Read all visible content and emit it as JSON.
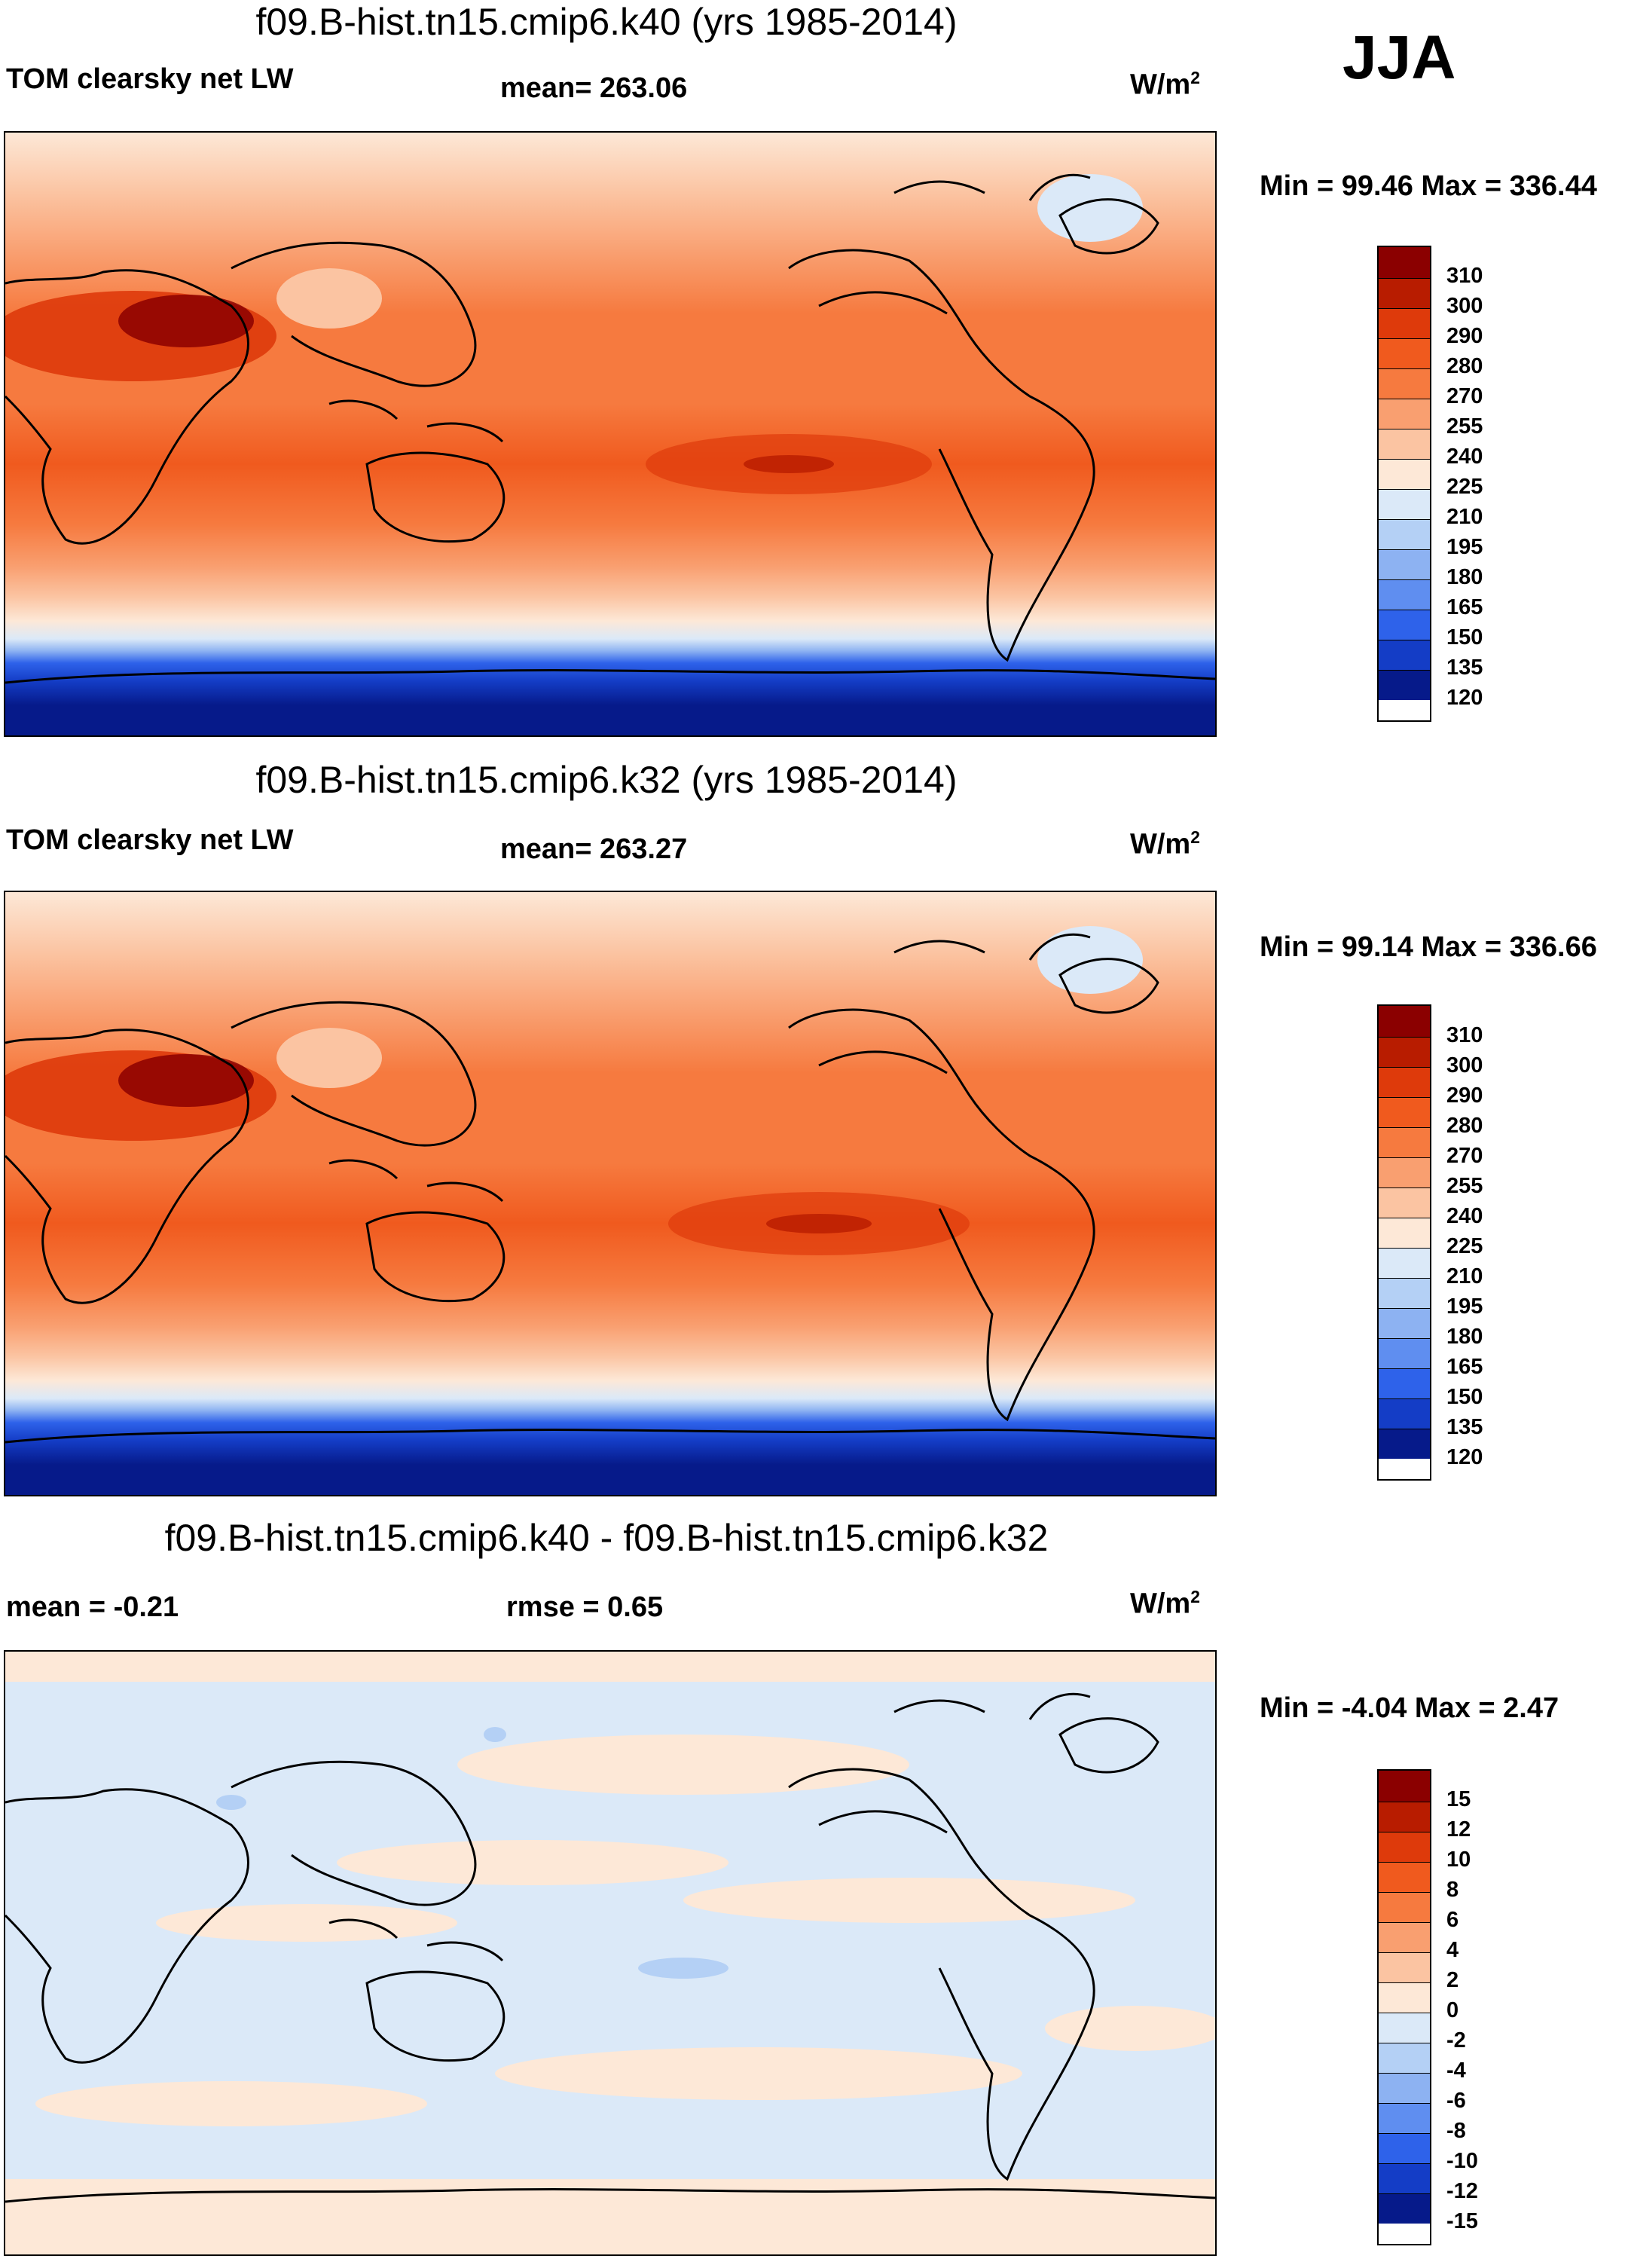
{
  "season": "JJA",
  "panels": [
    {
      "title": "f09.B-hist.tn15.cmip6.k40 (yrs 1985-2014)",
      "left_label": "TOM clearsky net LW",
      "mean_label": "mean= 263.06",
      "units": "W/m",
      "units_sup": "2",
      "minmax": "Min =  99.46 Max = 336.44",
      "colorbar": {
        "levels": [
          "310",
          "300",
          "290",
          "280",
          "270",
          "255",
          "240",
          "225",
          "210",
          "195",
          "180",
          "165",
          "150",
          "135",
          "120"
        ],
        "colors": [
          "#8b0000",
          "#b81c00",
          "#de3a0b",
          "#f05a1e",
          "#f67a3f",
          "#f99f70",
          "#fbc4a2",
          "#fde8d7",
          "#dbe9f8",
          "#b4d0f5",
          "#8db2f2",
          "#5f8ef0",
          "#2e62ea",
          "#143dc6",
          "#061a8a"
        ]
      }
    },
    {
      "title": "f09.B-hist.tn15.cmip6.k32 (yrs 1985-2014)",
      "left_label": "TOM clearsky net LW",
      "mean_label": "mean= 263.27",
      "units": "W/m",
      "units_sup": "2",
      "minmax": "Min =  99.14 Max = 336.66",
      "colorbar": {
        "levels": [
          "310",
          "300",
          "290",
          "280",
          "270",
          "255",
          "240",
          "225",
          "210",
          "195",
          "180",
          "165",
          "150",
          "135",
          "120"
        ],
        "colors": [
          "#8b0000",
          "#b81c00",
          "#de3a0b",
          "#f05a1e",
          "#f67a3f",
          "#f99f70",
          "#fbc4a2",
          "#fde8d7",
          "#dbe9f8",
          "#b4d0f5",
          "#8db2f2",
          "#5f8ef0",
          "#2e62ea",
          "#143dc6",
          "#061a8a"
        ]
      }
    },
    {
      "title": "f09.B-hist.tn15.cmip6.k40 - f09.B-hist.tn15.cmip6.k32",
      "left_label": "mean =  -0.21",
      "mean_label": "rmse =   0.65",
      "units": "W/m",
      "units_sup": "2",
      "minmax": "Min =  -4.04 Max =   2.47",
      "colorbar": {
        "levels": [
          "15",
          "12",
          "10",
          "8",
          "6",
          "4",
          "2",
          "0",
          "-2",
          "-4",
          "-6",
          "-8",
          "-10",
          "-12",
          "-15"
        ],
        "colors": [
          "#8b0000",
          "#b81c00",
          "#de3a0b",
          "#f05a1e",
          "#f67a3f",
          "#f99f70",
          "#fbc4a2",
          "#fde8d7",
          "#dbe9f8",
          "#b4d0f5",
          "#8db2f2",
          "#5f8ef0",
          "#2e62ea",
          "#143dc6",
          "#061a8a"
        ]
      }
    }
  ]
}
